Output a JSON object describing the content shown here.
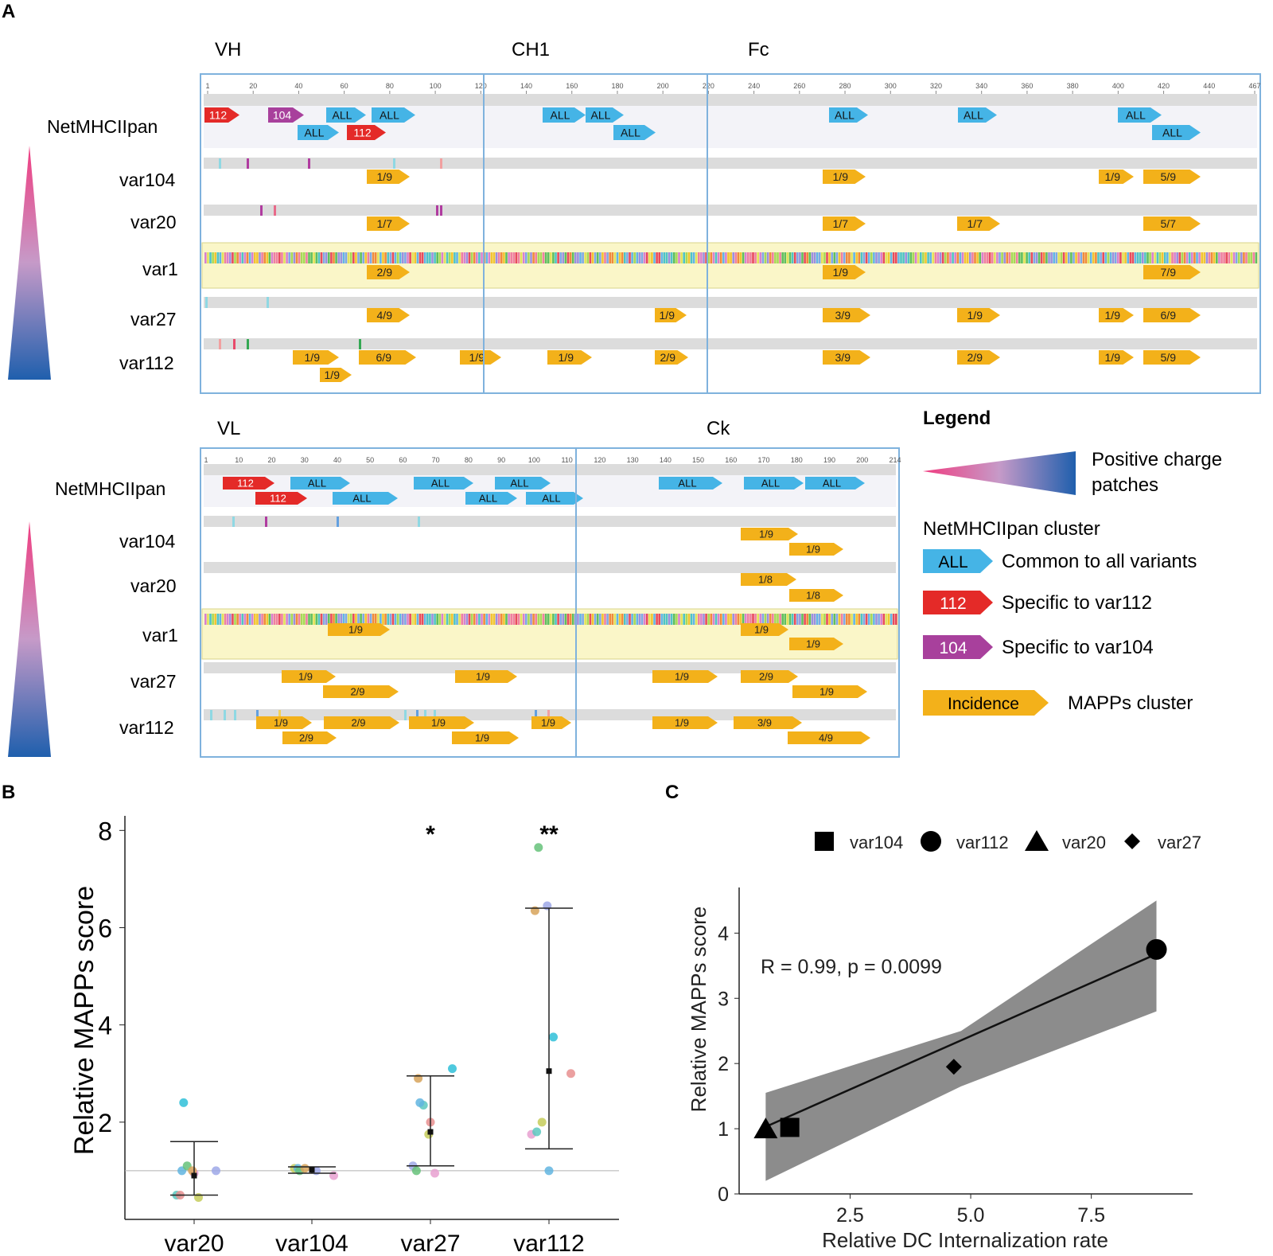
{
  "panel_labels": {
    "a": "A",
    "b": "B",
    "c": "C"
  },
  "heavy": {
    "regions": [
      "VH",
      "CH1",
      "Fc"
    ],
    "ticks": [
      "1",
      "20",
      "40",
      "60",
      "80",
      "100",
      "120",
      "140",
      "160",
      "180",
      "200",
      "220",
      "240",
      "260",
      "280",
      "300",
      "320",
      "340",
      "360",
      "380",
      "400",
      "420",
      "440",
      "467"
    ],
    "rows": [
      "NetMHCIIpan",
      "var104",
      "var20",
      "var1",
      "var27",
      "var112"
    ],
    "netmhc": [
      {
        "label": "112",
        "type": "112"
      },
      {
        "label": "104",
        "type": "104"
      },
      {
        "label": "ALL",
        "type": "ALL"
      },
      {
        "label": "ALL",
        "type": "ALL"
      },
      {
        "label": "ALL",
        "type": "ALL"
      },
      {
        "label": "112",
        "type": "112"
      },
      {
        "label": "ALL",
        "type": "ALL"
      },
      {
        "label": "ALL",
        "type": "ALL"
      },
      {
        "label": "ALL",
        "type": "ALL"
      },
      {
        "label": "ALL",
        "type": "ALL"
      },
      {
        "label": "ALL",
        "type": "ALL"
      },
      {
        "label": "ALL",
        "type": "ALL"
      },
      {
        "label": "ALL",
        "type": "ALL"
      }
    ],
    "mapps": {
      "var104": [
        "1/9",
        "1/9",
        "1/9",
        "5/9"
      ],
      "var20": [
        "1/7",
        "1/7",
        "1/7",
        "5/7"
      ],
      "var1": [
        "2/9",
        "1/9",
        "7/9"
      ],
      "var27": [
        "4/9",
        "1/9",
        "3/9",
        "1/9",
        "1/9",
        "6/9"
      ],
      "var112": [
        "1/9",
        "6/9",
        "1/9",
        "1/9",
        "2/9",
        "3/9",
        "2/9",
        "1/9",
        "5/9",
        "1/9"
      ]
    }
  },
  "light": {
    "regions": [
      "VL",
      "Ck"
    ],
    "ticks": [
      "1",
      "10",
      "20",
      "30",
      "40",
      "50",
      "60",
      "70",
      "80",
      "90",
      "100",
      "110",
      "120",
      "130",
      "140",
      "150",
      "160",
      "170",
      "180",
      "190",
      "200",
      "214"
    ],
    "rows": [
      "NetMHCIIpan",
      "var104",
      "var20",
      "var1",
      "var27",
      "var112"
    ],
    "netmhc": [
      {
        "label": "112",
        "type": "112"
      },
      {
        "label": "ALL",
        "type": "ALL"
      },
      {
        "label": "ALL",
        "type": "ALL"
      },
      {
        "label": "ALL",
        "type": "ALL"
      },
      {
        "label": "112",
        "type": "112"
      },
      {
        "label": "ALL",
        "type": "ALL"
      },
      {
        "label": "ALL",
        "type": "ALL"
      },
      {
        "label": "ALL",
        "type": "ALL"
      },
      {
        "label": "ALL",
        "type": "ALL"
      },
      {
        "label": "ALL",
        "type": "ALL"
      },
      {
        "label": "ALL",
        "type": "ALL"
      }
    ],
    "mapps": {
      "var104": [
        "1/9",
        "1/9"
      ],
      "var20": [
        "1/8",
        "1/8"
      ],
      "var1": [
        "1/9",
        "1/9",
        "1/9"
      ],
      "var27": [
        "1/9",
        "1/9",
        "1/9",
        "2/9",
        "1/9",
        "2/9"
      ],
      "var112": [
        "1/9",
        "2/9",
        "1/9",
        "1/9",
        "2/9",
        "1/9",
        "1/9",
        "3/9",
        "4/9"
      ]
    }
  },
  "legend": {
    "title": "Legend",
    "charge_line1": "Positive charge",
    "charge_line2": "patches",
    "cluster_title": "NetMHCIIpan cluster",
    "items": [
      {
        "tag": "ALL",
        "desc": "Common to all variants",
        "color": "#45b4e6"
      },
      {
        "tag": "112",
        "desc": "Specific to var112",
        "color": "#e42a28"
      },
      {
        "tag": "104",
        "desc": "Specific to var104",
        "color": "#a8409c"
      },
      {
        "tag": "Incidence",
        "desc": "MAPPs cluster",
        "color": "#f3b11a"
      }
    ]
  },
  "colors": {
    "all": "#45b4e6",
    "v112": "#e42a28",
    "v104": "#a8409c",
    "mapps": "#f3b11a",
    "frame": "#7fb2dd",
    "var1_bg": "#faf6c8"
  },
  "chart_data": [
    {
      "type": "scatter",
      "title": "",
      "xlabel": "",
      "ylabel": "Relative MAPPs score",
      "ylim": [
        0,
        8.3
      ],
      "yticks": [
        "2",
        "4",
        "6",
        "8"
      ],
      "reference_line": 1.0,
      "categories": [
        "var20",
        "var104",
        "var27",
        "var112"
      ],
      "significance": [
        "",
        "",
        "*",
        "**"
      ],
      "series": [
        {
          "name": "var20",
          "points": [
            0.5,
            0.5,
            0.45,
            1.0,
            1.0,
            1.1,
            0.95,
            1.0,
            2.4
          ],
          "mean": 0.9,
          "lower": 0.5,
          "upper": 1.6
        },
        {
          "name": "var104",
          "points": [
            1.05,
            1.05,
            1.0,
            1.0,
            0.9,
            1.05
          ],
          "mean": 1.02,
          "lower": 0.95,
          "upper": 1.08
        },
        {
          "name": "var27",
          "points": [
            1.1,
            1.0,
            0.95,
            2.9,
            3.1,
            2.35,
            2.0,
            1.75,
            2.4
          ],
          "mean": 1.8,
          "lower": 1.1,
          "upper": 2.95
        },
        {
          "name": "var112",
          "points": [
            1.75,
            6.35,
            3.75,
            1.8,
            3.0,
            2.0,
            1.0,
            6.45,
            7.65
          ],
          "mean": 3.05,
          "lower": 1.45,
          "upper": 6.4
        }
      ]
    },
    {
      "type": "scatter",
      "title": "",
      "xlabel": "Relative DC Internalization rate",
      "ylabel": "Relative MAPPs score",
      "xlim": [
        0.2,
        9.6
      ],
      "ylim": [
        0,
        4.7
      ],
      "xticks": [
        "2.5",
        "5.0",
        "7.5"
      ],
      "yticks": [
        "0",
        "1",
        "2",
        "3",
        "4"
      ],
      "annotation": "R = 0.99, p = 0.0099",
      "legend": [
        "var104",
        "var112",
        "var20",
        "var27"
      ],
      "points": [
        {
          "name": "var104",
          "x": 1.25,
          "y": 1.02,
          "shape": "square"
        },
        {
          "name": "var112",
          "x": 8.85,
          "y": 3.75,
          "shape": "circle"
        },
        {
          "name": "var20",
          "x": 0.75,
          "y": 1.0,
          "shape": "triangle"
        },
        {
          "name": "var27",
          "x": 4.65,
          "y": 1.95,
          "shape": "diamond"
        }
      ],
      "fit": {
        "x0": 0.75,
        "y0": 1.03,
        "x1": 8.85,
        "y1": 3.68
      },
      "ci": [
        {
          "x": 0.75,
          "lo": 0.2,
          "hi": 1.55
        },
        {
          "x": 4.8,
          "lo": 1.65,
          "hi": 2.5
        },
        {
          "x": 8.85,
          "lo": 2.8,
          "hi": 4.5
        }
      ]
    }
  ]
}
